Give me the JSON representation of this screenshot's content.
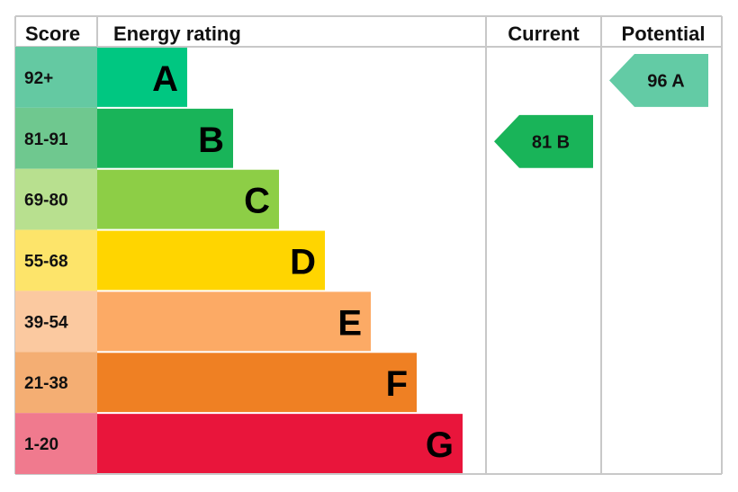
{
  "chart_data": {
    "type": "bar",
    "headers": {
      "score": "Score",
      "rating": "Energy rating",
      "current": "Current",
      "potential": "Potential"
    },
    "bands": [
      {
        "score": "92+",
        "letter": "A",
        "color": "#00c781",
        "score_color": "#64c9a2"
      },
      {
        "score": "81-91",
        "letter": "B",
        "color": "#19b459",
        "score_color": "#6fc88f"
      },
      {
        "score": "69-80",
        "letter": "C",
        "color": "#8dce46",
        "score_color": "#b8e08f"
      },
      {
        "score": "55-68",
        "letter": "D",
        "color": "#ffd500",
        "score_color": "#fde46a"
      },
      {
        "score": "39-54",
        "letter": "E",
        "color": "#fcaa65",
        "score_color": "#fbc9a0"
      },
      {
        "score": "21-38",
        "letter": "F",
        "color": "#ef8023",
        "score_color": "#f4ae73"
      },
      {
        "score": "1-20",
        "letter": "G",
        "color": "#e9153b",
        "score_color": "#f07a8e"
      }
    ],
    "current": {
      "value": 81,
      "band": "B",
      "label": "81 B",
      "color": "#19b459"
    },
    "potential": {
      "value": 96,
      "band": "A",
      "label": "96 A",
      "color": "#63cba5"
    }
  }
}
